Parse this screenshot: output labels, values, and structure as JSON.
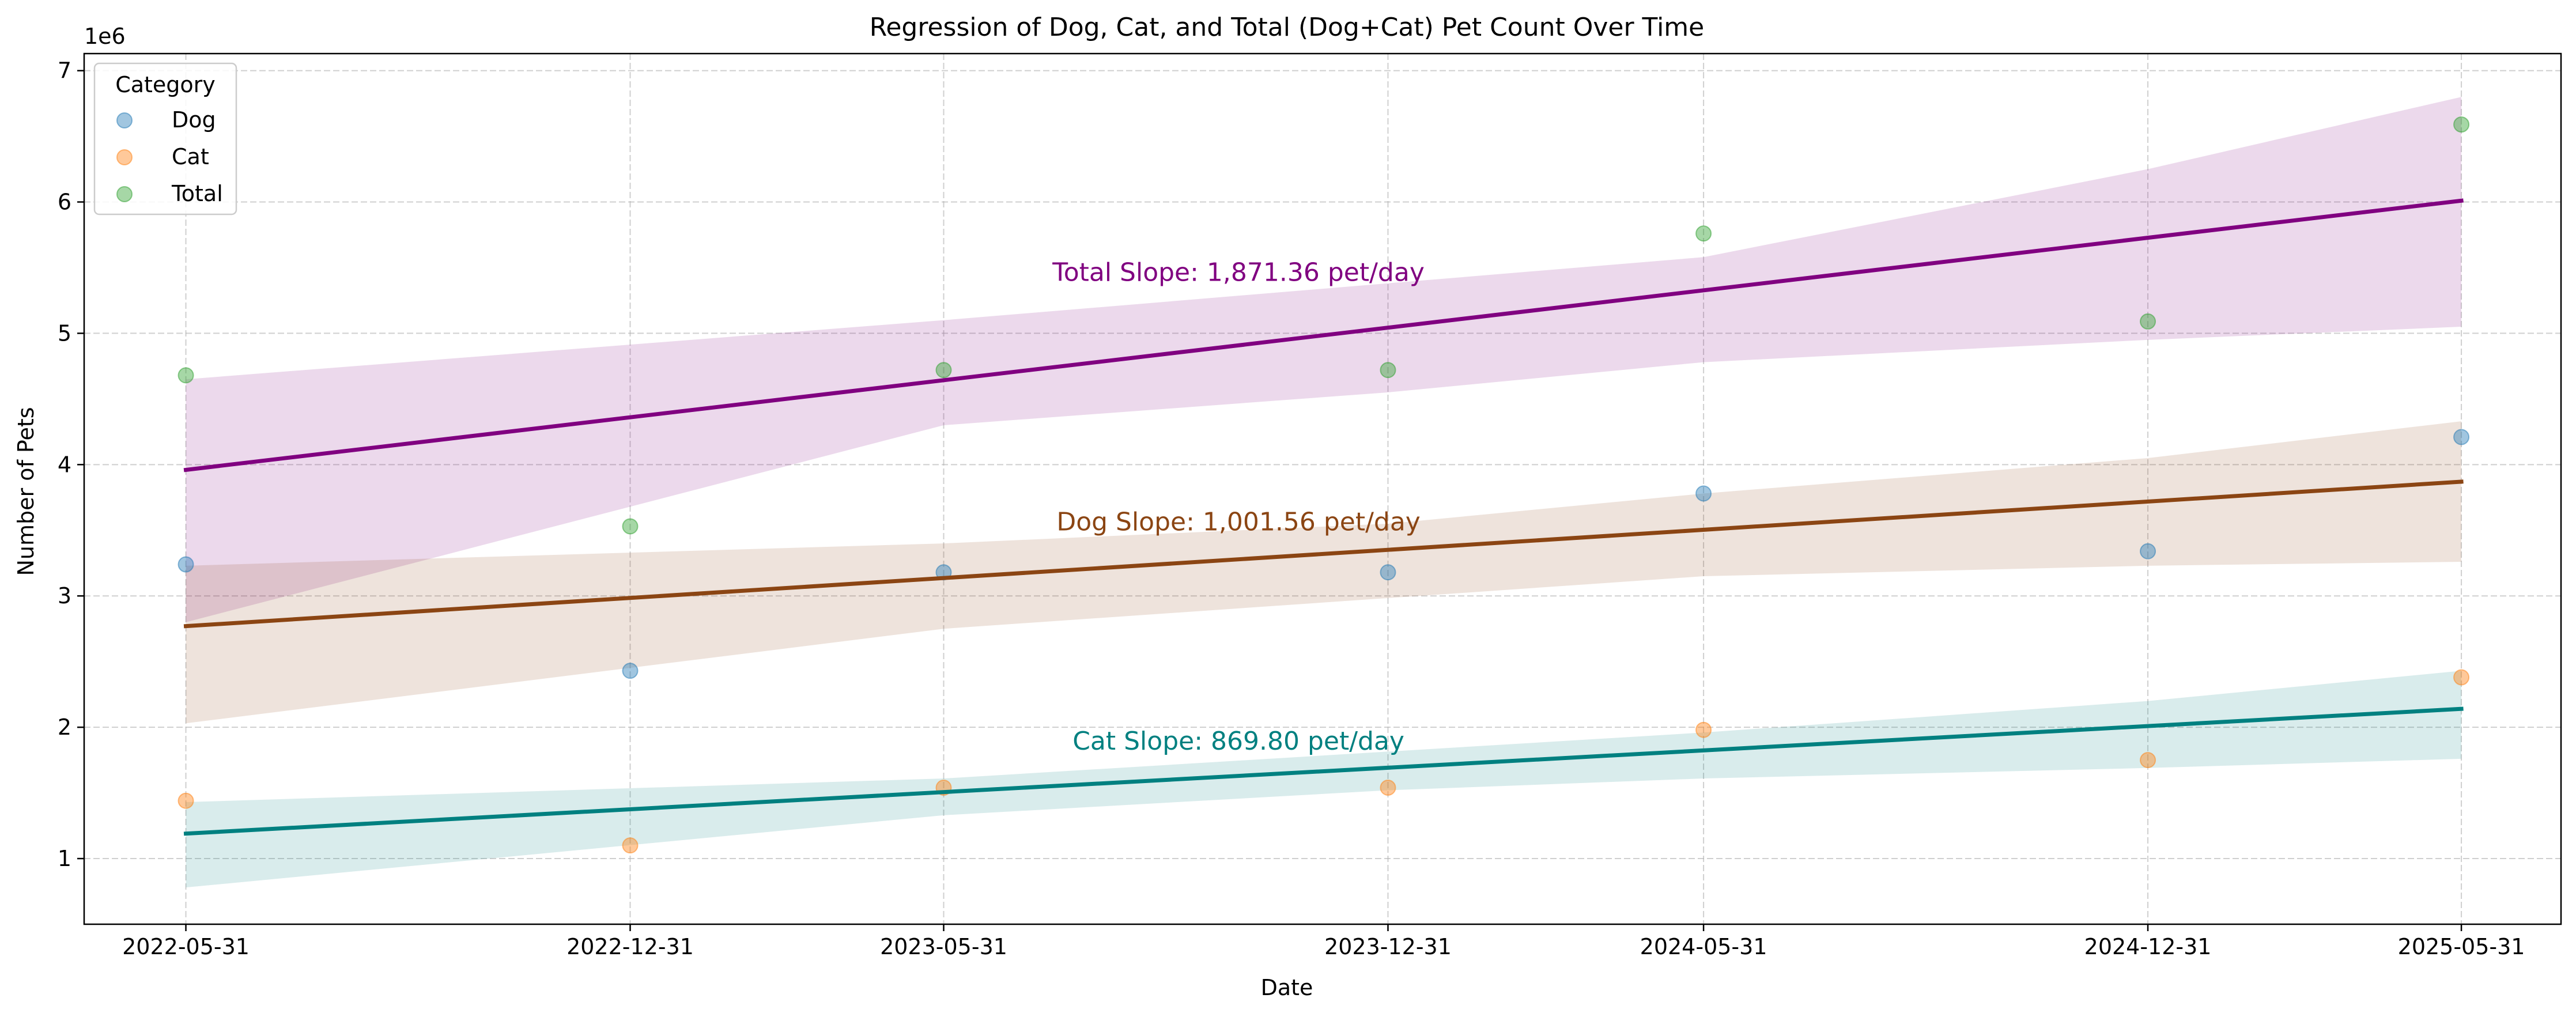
{
  "chart_data": {
    "type": "scatter",
    "title": "Regression of Dog, Cat, and Total (Dog+Cat) Pet Count Over Time",
    "xlabel": "Date",
    "ylabel": "Number of Pets",
    "y_offset_label": "1e6",
    "y_multiplier": 1000000,
    "xlim": [
      "2022-04-12",
      "2025-07-18"
    ],
    "ylim": [
      500000,
      7130000
    ],
    "x_ticks": [
      "2022-05-31",
      "2022-12-31",
      "2023-05-31",
      "2023-12-31",
      "2024-05-31",
      "2024-12-31",
      "2025-05-31"
    ],
    "y_ticks": [
      1,
      2,
      3,
      4,
      5,
      6,
      7
    ],
    "grid": true,
    "legend": {
      "title": "Category",
      "position": "top-left",
      "entries": [
        "Dog",
        "Cat",
        "Total"
      ]
    },
    "series": [
      {
        "name": "Dog",
        "color": "#1f77b4",
        "x": [
          "2022-05-31",
          "2022-12-31",
          "2023-05-31",
          "2023-12-31",
          "2024-05-31",
          "2024-12-31",
          "2025-05-31"
        ],
        "y": [
          3240000,
          2430000,
          3180000,
          3180000,
          3780000,
          3340000,
          4210000
        ]
      },
      {
        "name": "Cat",
        "color": "#ff7f0e",
        "x": [
          "2022-05-31",
          "2022-12-31",
          "2023-05-31",
          "2023-12-31",
          "2024-05-31",
          "2024-12-31",
          "2025-05-31"
        ],
        "y": [
          1440000,
          1100000,
          1540000,
          1540000,
          1980000,
          1750000,
          2380000
        ]
      },
      {
        "name": "Total",
        "color": "#2ca02c",
        "x": [
          "2022-05-31",
          "2022-12-31",
          "2023-05-31",
          "2023-12-31",
          "2024-05-31",
          "2024-12-31",
          "2025-05-31"
        ],
        "y": [
          4680000,
          3530000,
          4720000,
          4720000,
          5760000,
          5090000,
          6590000
        ]
      }
    ],
    "regressions": [
      {
        "series": "Total",
        "color": "#800080",
        "line": [
          [
            "2022-05-31",
            3960000
          ],
          [
            "2025-05-31",
            6010000
          ]
        ],
        "band_upper": [
          [
            "2022-05-31",
            4650000
          ],
          [
            "2023-05-31",
            5100000
          ],
          [
            "2024-05-31",
            5580000
          ],
          [
            "2024-12-31",
            6250000
          ],
          [
            "2025-05-31",
            6800000
          ]
        ],
        "band_lower": [
          [
            "2022-05-31",
            2800000
          ],
          [
            "2023-05-31",
            4300000
          ],
          [
            "2023-12-31",
            4550000
          ],
          [
            "2024-05-31",
            4780000
          ],
          [
            "2024-12-31",
            4950000
          ],
          [
            "2025-05-31",
            5050000
          ]
        ],
        "annotation": {
          "text": "Total Slope: 1,871.36 pet/day",
          "x": "2023-10-20",
          "y": 5400000
        }
      },
      {
        "series": "Dog",
        "color": "#8B4513",
        "line": [
          [
            "2022-05-31",
            2770000
          ],
          [
            "2025-05-31",
            3870000
          ]
        ],
        "band_upper": [
          [
            "2022-05-31",
            3230000
          ],
          [
            "2023-05-31",
            3400000
          ],
          [
            "2023-12-31",
            3550000
          ],
          [
            "2024-05-31",
            3780000
          ],
          [
            "2024-12-31",
            4050000
          ],
          [
            "2025-05-31",
            4330000
          ]
        ],
        "band_lower": [
          [
            "2022-05-31",
            2030000
          ],
          [
            "2023-05-31",
            2750000
          ],
          [
            "2024-05-31",
            3150000
          ],
          [
            "2024-12-31",
            3230000
          ],
          [
            "2025-05-31",
            3260000
          ]
        ],
        "annotation": {
          "text": "Dog Slope: 1,001.56 pet/day",
          "x": "2023-10-20",
          "y": 3500000
        }
      },
      {
        "series": "Cat",
        "color": "#008080",
        "line": [
          [
            "2022-05-31",
            1190000
          ],
          [
            "2025-05-31",
            2140000
          ]
        ],
        "band_upper": [
          [
            "2022-05-31",
            1430000
          ],
          [
            "2023-05-31",
            1610000
          ],
          [
            "2024-05-31",
            1960000
          ],
          [
            "2024-12-31",
            2200000
          ],
          [
            "2025-05-31",
            2430000
          ]
        ],
        "band_lower": [
          [
            "2022-05-31",
            780000
          ],
          [
            "2023-05-31",
            1330000
          ],
          [
            "2023-12-31",
            1520000
          ],
          [
            "2024-05-31",
            1610000
          ],
          [
            "2024-12-31",
            1690000
          ],
          [
            "2025-05-31",
            1760000
          ]
        ],
        "annotation": {
          "text": "Cat Slope: 869.80 pet/day",
          "x": "2023-10-20",
          "y": 1830000
        }
      }
    ]
  }
}
